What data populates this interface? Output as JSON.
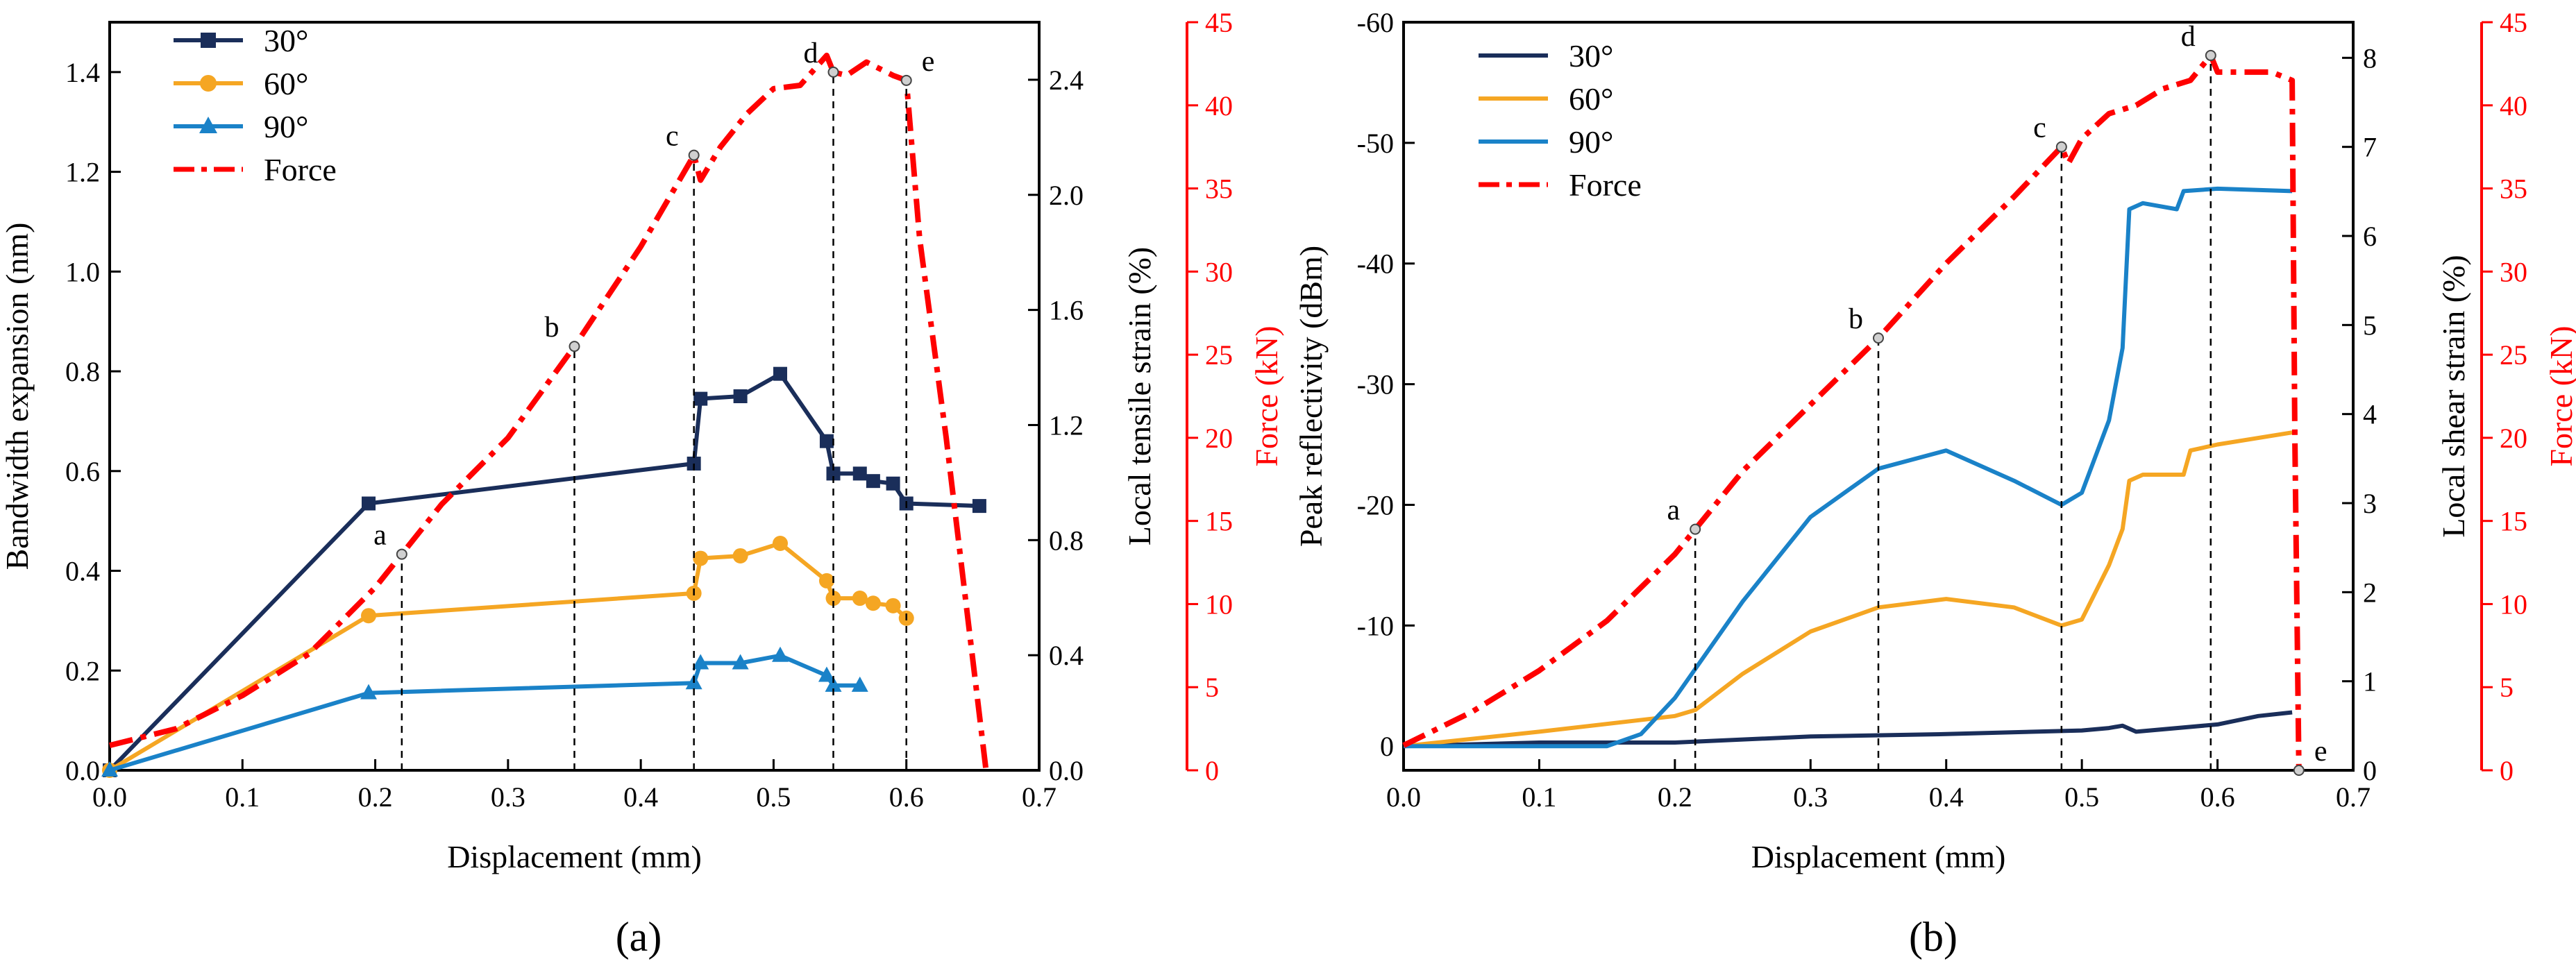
{
  "figure": {
    "panel_a_label": "(a)",
    "panel_b_label": "(b)",
    "colors": {
      "s30": "#1a2e5a",
      "s60": "#f5a623",
      "s90": "#1a82c8",
      "force": "#ff0000"
    }
  },
  "chart_data": [
    {
      "type": "line",
      "panel": "a",
      "xlabel": "Displacement (mm)",
      "ylabel": "Bandwidth expansion (nm)",
      "y2label": "Local tensile strain (%)",
      "y3label": "Force (kN)",
      "xlim": [
        0,
        0.7
      ],
      "ylim": [
        0,
        1.5
      ],
      "y2lim": [
        0,
        2.6
      ],
      "y3lim": [
        0,
        45
      ],
      "xticks": [
        "0.0",
        "0.1",
        "0.2",
        "0.3",
        "0.4",
        "0.5",
        "0.6",
        "0.7"
      ],
      "yticks": [
        "0.0",
        "0.2",
        "0.4",
        "0.6",
        "0.8",
        "1.0",
        "1.2",
        "1.4"
      ],
      "y2ticks": [
        "0.0",
        "0.4",
        "0.8",
        "1.2",
        "1.6",
        "2.0",
        "2.4"
      ],
      "y3ticks": [
        "0",
        "5",
        "10",
        "15",
        "20",
        "25",
        "30",
        "35",
        "40",
        "45"
      ],
      "legend": [
        "30°",
        "60°",
        "90°",
        "Force"
      ],
      "series": [
        {
          "name": "30°",
          "marker": "square",
          "x": [
            0,
            0.195,
            0.44,
            0.445,
            0.475,
            0.505,
            0.54,
            0.545,
            0.565,
            0.575,
            0.59,
            0.6,
            0.655
          ],
          "y": [
            0,
            0.535,
            0.615,
            0.745,
            0.75,
            0.795,
            0.66,
            0.595,
            0.595,
            0.58,
            0.575,
            0.535,
            0.53
          ]
        },
        {
          "name": "60°",
          "marker": "circle",
          "x": [
            0,
            0.195,
            0.44,
            0.445,
            0.475,
            0.505,
            0.54,
            0.545,
            0.565,
            0.575,
            0.59,
            0.6
          ],
          "y": [
            0,
            0.31,
            0.355,
            0.425,
            0.43,
            0.455,
            0.38,
            0.345,
            0.345,
            0.335,
            0.33,
            0.305
          ]
        },
        {
          "name": "90°",
          "marker": "triangle",
          "x": [
            0,
            0.195,
            0.44,
            0.445,
            0.475,
            0.505,
            0.54,
            0.545,
            0.565
          ],
          "y": [
            0,
            0.155,
            0.175,
            0.215,
            0.215,
            0.23,
            0.19,
            0.17,
            0.17
          ]
        },
        {
          "name": "Force",
          "axis": "force",
          "x": [
            0,
            0.05,
            0.1,
            0.15,
            0.2,
            0.25,
            0.3,
            0.35,
            0.4,
            0.44,
            0.445,
            0.46,
            0.48,
            0.5,
            0.52,
            0.54,
            0.545,
            0.555,
            0.57,
            0.59,
            0.6,
            0.61,
            0.63,
            0.66
          ],
          "y": [
            1.5,
            2.5,
            4.5,
            7,
            11,
            16,
            20,
            25.5,
            31.5,
            37,
            35.5,
            37.5,
            39.5,
            41,
            41.2,
            43,
            42,
            41.8,
            42.6,
            41.8,
            41.5,
            32,
            20,
            0
          ]
        }
      ],
      "annotations": [
        {
          "label": "a",
          "x": 0.22
        },
        {
          "label": "b",
          "x": 0.35
        },
        {
          "label": "c",
          "x": 0.44
        },
        {
          "label": "d",
          "x": 0.545
        },
        {
          "label": "e",
          "x": 0.6
        }
      ]
    },
    {
      "type": "line",
      "panel": "b",
      "xlabel": "Displacement (mm)",
      "ylabel": "Peak reflectivity (dBm)",
      "y2label": "Local shear strain (%)",
      "y3label": "Force (kN)",
      "xlim": [
        0,
        0.7
      ],
      "ylim": [
        2,
        -60
      ],
      "y2lim": [
        0,
        8.4
      ],
      "y3lim": [
        0,
        45
      ],
      "xticks": [
        "0.0",
        "0.1",
        "0.2",
        "0.3",
        "0.4",
        "0.5",
        "0.6",
        "0.7"
      ],
      "yticks": [
        "0",
        "-10",
        "-20",
        "-30",
        "-40",
        "-50",
        "-60"
      ],
      "y2ticks": [
        "0",
        "1",
        "2",
        "3",
        "4",
        "5",
        "6",
        "7",
        "8"
      ],
      "y3ticks": [
        "0",
        "5",
        "10",
        "15",
        "20",
        "25",
        "30",
        "35",
        "40",
        "45"
      ],
      "legend": [
        "30°",
        "60°",
        "90°",
        "Force"
      ],
      "series": [
        {
          "name": "30°",
          "x": [
            0,
            0.1,
            0.2,
            0.3,
            0.4,
            0.5,
            0.52,
            0.53,
            0.54,
            0.6,
            0.63,
            0.655
          ],
          "y": [
            0,
            -0.3,
            -0.3,
            -0.8,
            -1.0,
            -1.3,
            -1.5,
            -1.7,
            -1.2,
            -1.8,
            -2.5,
            -2.8
          ]
        },
        {
          "name": "60°",
          "x": [
            0,
            0.1,
            0.2,
            0.215,
            0.25,
            0.3,
            0.35,
            0.4,
            0.45,
            0.485,
            0.5,
            0.52,
            0.53,
            0.535,
            0.545,
            0.575,
            0.58,
            0.6,
            0.655
          ],
          "y": [
            0,
            -1.2,
            -2.5,
            -3,
            -6,
            -9.5,
            -11.5,
            -12.2,
            -11.5,
            -10,
            -10.5,
            -15,
            -18,
            -22,
            -22.5,
            -22.5,
            -24.5,
            -25,
            -26
          ]
        },
        {
          "name": "90°",
          "x": [
            0,
            0.1,
            0.15,
            0.175,
            0.2,
            0.25,
            0.3,
            0.35,
            0.4,
            0.45,
            0.485,
            0.5,
            0.52,
            0.53,
            0.535,
            0.545,
            0.57,
            0.575,
            0.6,
            0.655
          ],
          "y": [
            0,
            0,
            0,
            -1,
            -4,
            -12,
            -19,
            -23,
            -24.5,
            -22,
            -20,
            -21,
            -27,
            -33,
            -44.5,
            -45,
            -44.5,
            -46,
            -46.2,
            -46
          ]
        },
        {
          "name": "Force",
          "axis": "force",
          "x": [
            0,
            0.05,
            0.1,
            0.15,
            0.2,
            0.25,
            0.3,
            0.35,
            0.4,
            0.45,
            0.485,
            0.49,
            0.5,
            0.52,
            0.54,
            0.56,
            0.58,
            0.595,
            0.6,
            0.62,
            0.64,
            0.655,
            0.657,
            0.66
          ],
          "y": [
            1.5,
            3.5,
            6,
            9,
            13,
            18,
            22,
            26,
            30.5,
            34.5,
            37.5,
            36.5,
            38,
            39.5,
            40,
            41,
            41.5,
            43,
            42,
            42,
            42,
            41.5,
            20,
            0
          ]
        }
      ],
      "annotations": [
        {
          "label": "a",
          "x": 0.215
        },
        {
          "label": "b",
          "x": 0.35
        },
        {
          "label": "c",
          "x": 0.485
        },
        {
          "label": "d",
          "x": 0.595
        },
        {
          "label": "e",
          "x": 0.66
        }
      ]
    }
  ]
}
